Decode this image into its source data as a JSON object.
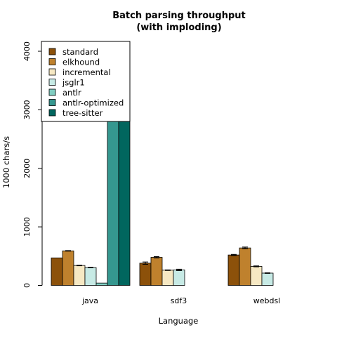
{
  "chart_data": {
    "type": "bar",
    "title": "Batch parsing throughput",
    "subtitle": "(with imploding)",
    "xlabel": "Language",
    "ylabel": "1000 chars/s",
    "ylim": [
      0,
      4200
    ],
    "yticks": [
      0,
      1000,
      2000,
      3000,
      4000
    ],
    "categories": [
      "java",
      "sdf3",
      "webdsl"
    ],
    "grid": false,
    "legend_position": "top-left",
    "series": [
      {
        "name": "standard",
        "color": "#8c510a",
        "values": [
          470,
          380,
          520
        ],
        "errors": [
          0,
          20,
          10
        ]
      },
      {
        "name": "elkhound",
        "color": "#bf812d",
        "values": [
          590,
          480,
          640
        ],
        "errors": [
          5,
          12,
          15
        ]
      },
      {
        "name": "incremental",
        "color": "#f6e8c3",
        "values": [
          340,
          260,
          325
        ],
        "errors": [
          5,
          5,
          8
        ]
      },
      {
        "name": "jsglr1",
        "color": "#c7eae5",
        "values": [
          305,
          265,
          210
        ],
        "errors": [
          5,
          12,
          5
        ]
      },
      {
        "name": "antlr",
        "color": "#80cdc1",
        "values": [
          40,
          null,
          null
        ],
        "errors": [
          0,
          0,
          0
        ]
      },
      {
        "name": "antlr-optimized",
        "color": "#35978f",
        "values": [
          3920,
          null,
          null
        ],
        "errors": [
          200,
          0,
          0
        ]
      },
      {
        "name": "tree-sitter",
        "color": "#01665e",
        "values": [
          3520,
          null,
          null
        ],
        "errors": [
          10,
          0,
          0
        ]
      }
    ]
  }
}
